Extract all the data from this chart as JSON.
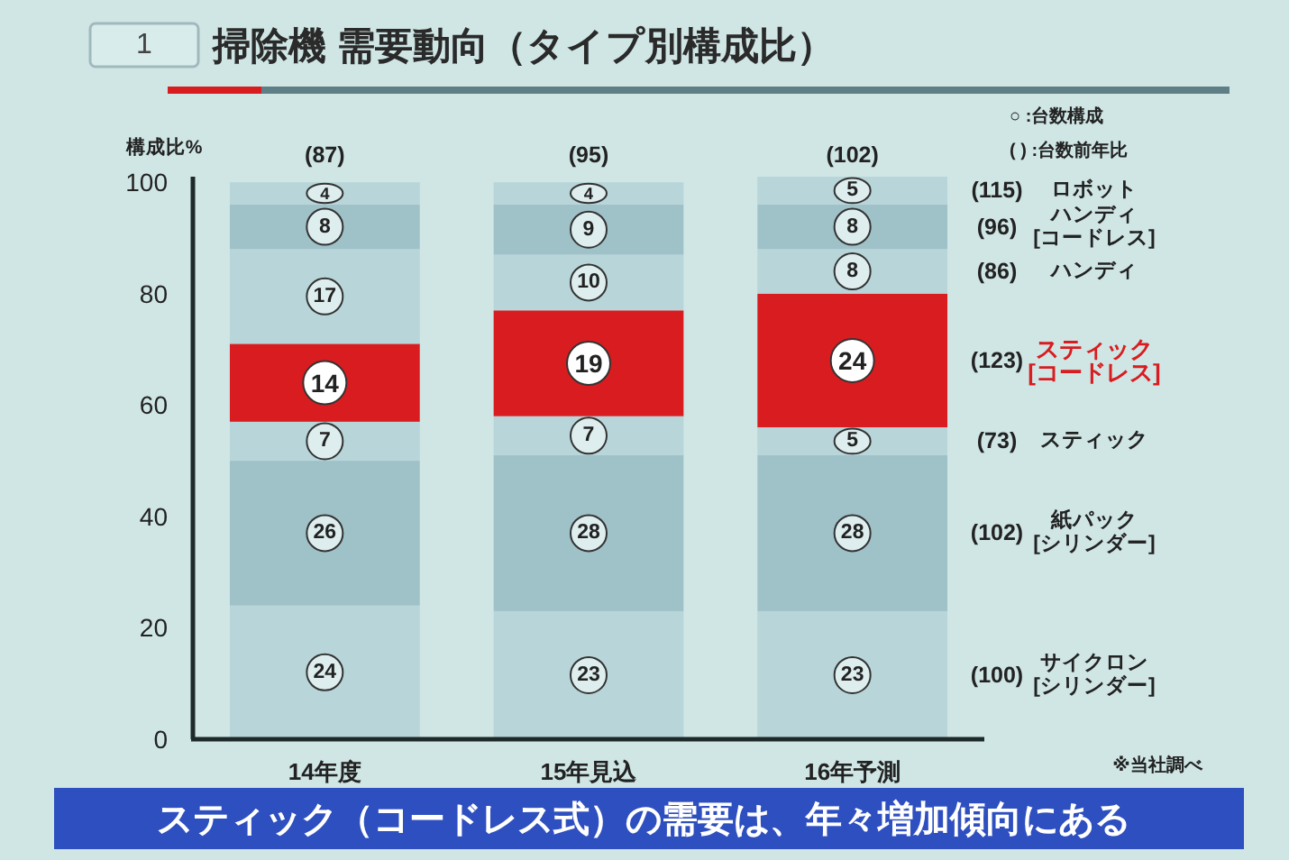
{
  "chart_data": {
    "type": "bar",
    "stacked": true,
    "title": "掃除機 需要動向（タイプ別構成比）",
    "ylabel": "構成比%",
    "categories": [
      "14年度",
      "15年見込",
      "16年予測"
    ],
    "ylim": [
      0,
      101
    ],
    "yticks": [
      0,
      20,
      40,
      60,
      80,
      100
    ],
    "data_labels": true,
    "series": [
      {
        "name": "サイクロン [シリンダー]",
        "color": "#b8d5d9",
        "values": [
          24,
          23,
          23
        ]
      },
      {
        "name": "紙パック [シリンダー]",
        "color": "#9fc1c8",
        "values": [
          26,
          28,
          28
        ]
      },
      {
        "name": "スティック",
        "color": "#b8d5d9",
        "values": [
          7,
          7,
          5
        ]
      },
      {
        "name": "スティック [コードレス]",
        "color": "#d91c20",
        "values": [
          14,
          19,
          24
        ]
      },
      {
        "name": "ハンディ",
        "color": "#b8d5d9",
        "values": [
          17,
          10,
          8
        ]
      },
      {
        "name": "ハンディ [コードレス]",
        "color": "#9fc1c8",
        "values": [
          8,
          9,
          8
        ]
      },
      {
        "name": "ロボット",
        "color": "#b8d5d9",
        "values": [
          4,
          4,
          5
        ]
      }
    ],
    "annotations": [
      "1",
      "○ :台数構成",
      "( ) :台数前年比",
      "※当社調べ",
      "スティック（コードレス式）の需要は、年々増加傾向にある",
      "(100)",
      "(102)",
      "(73)",
      "(123)",
      "(86)",
      "(96)",
      "(115)",
      {
        "text": "(87)",
        "x": "14年度",
        "y": 100
      },
      {
        "text": "(95)",
        "x": "15年見込",
        "y": 100
      },
      {
        "text": "(102)",
        "x": "16年予測",
        "y": 100
      }
    ]
  }
}
